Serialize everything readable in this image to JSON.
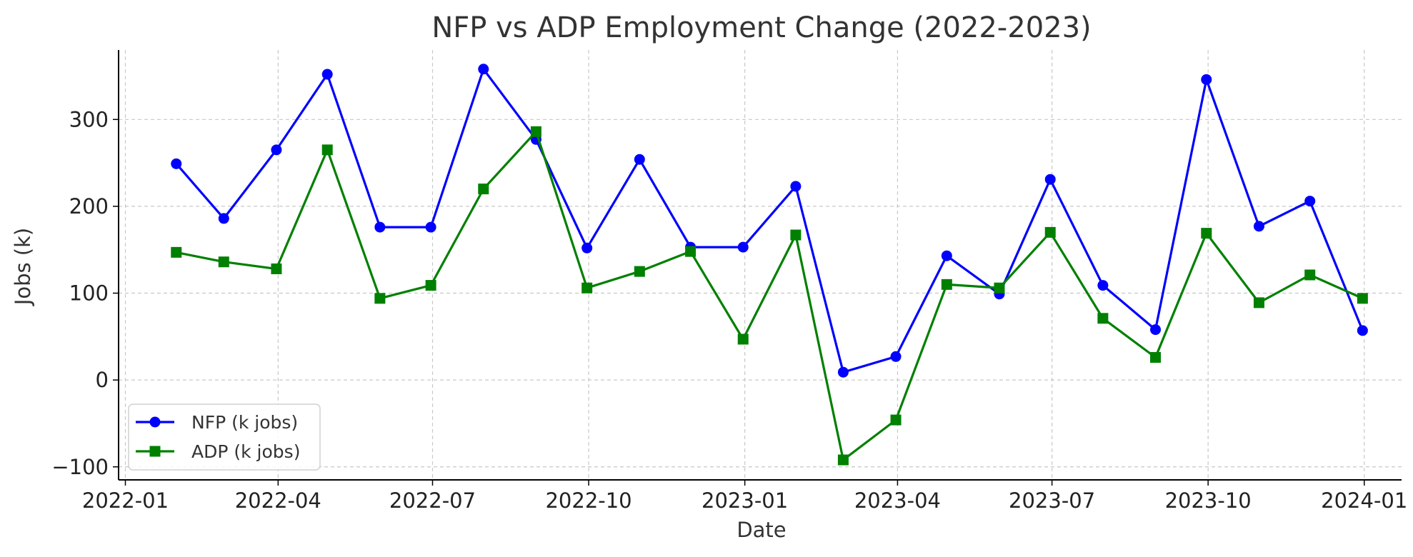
{
  "chart_data": {
    "type": "line",
    "title": "NFP vs ADP Employment Change (2022-2023)",
    "xlabel": "Date",
    "ylabel": "Jobs (k)",
    "x_ticks": [
      "2022-01",
      "2022-04",
      "2022-07",
      "2022-10",
      "2023-01",
      "2023-04",
      "2023-07",
      "2023-10",
      "2024-01"
    ],
    "y_ticks": [
      -100,
      0,
      100,
      200,
      300
    ],
    "x": [
      "2022-01-31",
      "2022-02-28",
      "2022-03-31",
      "2022-04-30",
      "2022-05-31",
      "2022-06-30",
      "2022-07-31",
      "2022-08-31",
      "2022-09-30",
      "2022-10-31",
      "2022-11-30",
      "2022-12-31",
      "2023-01-31",
      "2023-02-28",
      "2023-03-31",
      "2023-04-30",
      "2023-05-31",
      "2023-06-30",
      "2023-07-31",
      "2023-08-31",
      "2023-09-30",
      "2023-10-31",
      "2023-11-30",
      "2023-12-31"
    ],
    "xlim": [
      "2021-12-28",
      "2024-01-23"
    ],
    "ylim": [
      -115,
      380
    ],
    "grid": true,
    "legend_position": "lower-left",
    "series": [
      {
        "name": "NFP (k jobs)",
        "color": "#0000ff",
        "marker": "circle",
        "values": [
          249,
          186,
          265,
          352,
          176,
          176,
          358,
          277,
          152,
          254,
          153,
          153,
          223,
          9,
          27,
          143,
          99,
          231,
          109,
          58,
          346,
          177,
          206,
          57
        ]
      },
      {
        "name": "ADP (k jobs)",
        "color": "#008000",
        "marker": "square",
        "values": [
          147,
          136,
          128,
          265,
          94,
          109,
          220,
          286,
          106,
          125,
          148,
          47,
          167,
          -92,
          -46,
          110,
          106,
          170,
          71,
          26,
          169,
          89,
          121,
          94
        ]
      }
    ]
  }
}
